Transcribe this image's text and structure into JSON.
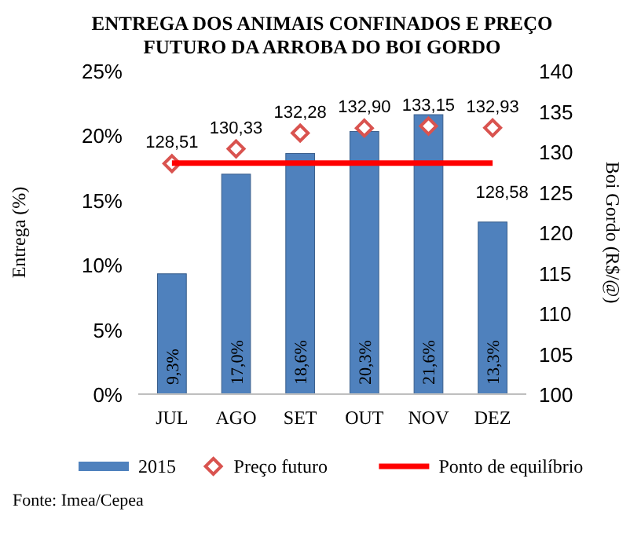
{
  "chart_data": {
    "type": "bar",
    "title": "ENTREGA DOS ANIMAIS CONFINADOS E PREÇO\nFUTURO DA ARROBA DO BOI GORDO",
    "ylabel": "Entrega (%)",
    "y2label": "Boi Gordo (R$/@)",
    "categories": [
      "JUL",
      "AGO",
      "SET",
      "OUT",
      "NOV",
      "DEZ"
    ],
    "series": [
      {
        "name": "2015",
        "color": "#4f81bd",
        "values": [
          9.3,
          17.0,
          18.6,
          20.3,
          21.6,
          13.3
        ],
        "value_labels": [
          "9,3%",
          "17,0%",
          "18,6%",
          "20,3%",
          "21,6%",
          "13,3%"
        ]
      },
      {
        "name": "Preço futuro",
        "type": "scatter",
        "axis": "y2",
        "marker": "diamond",
        "color": "#d9534f",
        "values": [
          128.51,
          130.33,
          132.28,
          132.9,
          133.15,
          132.93
        ],
        "value_labels": [
          "128,51",
          "130,33",
          "132,28",
          "132,90",
          "133,15",
          "132,93"
        ]
      },
      {
        "name": "Ponto de equilíbrio",
        "type": "line",
        "axis": "y2",
        "color": "#ff0000",
        "values": [
          128.58,
          128.58,
          128.58,
          128.58,
          128.58,
          128.58
        ],
        "value_labels": [
          null,
          null,
          null,
          null,
          null,
          "128,58"
        ]
      }
    ],
    "ylim": [
      0,
      25
    ],
    "yticks": [
      {
        "value": 0,
        "label": "0%"
      },
      {
        "value": 5,
        "label": "5%"
      },
      {
        "value": 10,
        "label": "10%"
      },
      {
        "value": 15,
        "label": "15%"
      },
      {
        "value": 20,
        "label": "20%"
      },
      {
        "value": 25,
        "label": "25%"
      }
    ],
    "y2lim": [
      100,
      140
    ],
    "y2ticks": [
      100,
      105,
      110,
      115,
      120,
      125,
      130,
      135,
      140
    ],
    "legend": "bottom",
    "grid": false,
    "annotations": [
      "Fonte: Imea/Cepea"
    ]
  }
}
